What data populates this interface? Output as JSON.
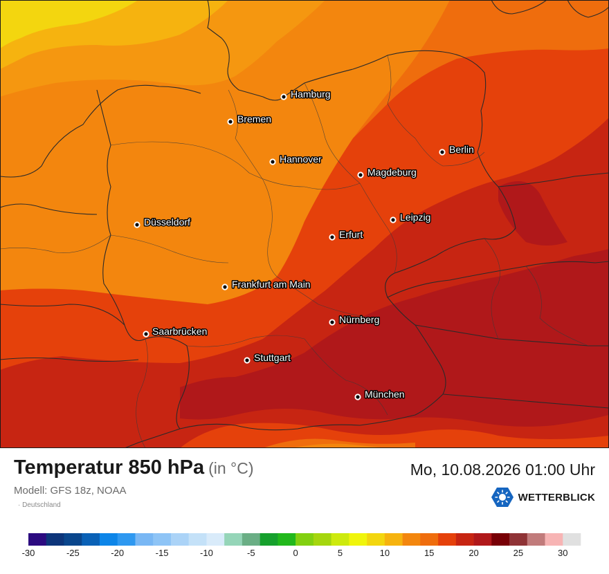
{
  "header": {
    "title": "Temperatur 850 hPa",
    "unit": "(in °C)",
    "datetime": "Mo, 10.08.2026 01:00 Uhr",
    "model": "Modell: GFS 18z, NOAA",
    "region": "· Deutschland",
    "brand": "WETTERBLICK"
  },
  "colors": {
    "brand": "#1565c0",
    "map_fill_14": "#f3860e",
    "map_fill_16": "#ef6d0d",
    "map_fill_18": "#e5410b",
    "map_fill_20": "#c72512",
    "map_fill_22": "#b0181a",
    "map_fill_10": "#f6b30f",
    "map_fill_8": "#f3d60f"
  },
  "cities": [
    {
      "name": "Hamburg"
    },
    {
      "name": "Bremen"
    },
    {
      "name": "Berlin"
    },
    {
      "name": "Hannover"
    },
    {
      "name": "Magdeburg"
    },
    {
      "name": "Leipzig"
    },
    {
      "name": "Düsseldorf"
    },
    {
      "name": "Erfurt"
    },
    {
      "name": "Frankfurt am Main"
    },
    {
      "name": "Nürnberg"
    },
    {
      "name": "Saarbrücken"
    },
    {
      "name": "Stuttgart"
    },
    {
      "name": "München"
    }
  ],
  "legend": {
    "range": [
      -30,
      32
    ],
    "step": 2,
    "ticks": [
      "-30",
      "-25",
      "-20",
      "-15",
      "-10",
      "-5",
      "0",
      "5",
      "10",
      "15",
      "20",
      "25",
      "30"
    ],
    "colors": [
      "#2c0b80",
      "#0d357a",
      "#0a468c",
      "#0a61b6",
      "#0d85e8",
      "#2e98f0",
      "#79b7f4",
      "#8ec4f6",
      "#abd3f7",
      "#c4e1f8",
      "#d9ebfa",
      "#95d5b8",
      "#6aae85",
      "#16a02d",
      "#22b81c",
      "#82d010",
      "#a5d60e",
      "#cdea0e",
      "#f0f50c",
      "#f3d60f",
      "#f6b30f",
      "#f3860e",
      "#ef6d0d",
      "#e5410b",
      "#c72512",
      "#b0181a",
      "#780006",
      "#8f3336",
      "#c17b7b",
      "#f7b4b4",
      "#e0e0e0"
    ]
  }
}
